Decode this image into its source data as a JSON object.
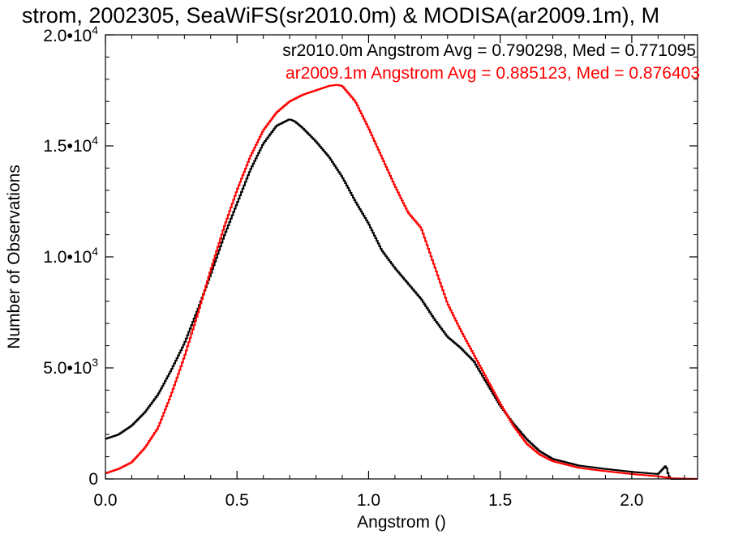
{
  "chart_data": {
    "type": "line",
    "step": true,
    "title": "strom, 2002305, SeaWiFS(sr2010.0m) & MODISA(ar2009.1m), M",
    "xlabel": "Angstrom ()",
    "ylabel": "Number of Observations",
    "xlim": [
      0,
      2.25
    ],
    "ylim": [
      0,
      20000
    ],
    "x_ticks": [
      {
        "value": 0.0,
        "label": "0.0"
      },
      {
        "value": 0.5,
        "label": "0.5"
      },
      {
        "value": 1.0,
        "label": "1.0"
      },
      {
        "value": 1.5,
        "label": "1.5"
      },
      {
        "value": 2.0,
        "label": "2.0"
      }
    ],
    "y_ticks": [
      {
        "value": 0,
        "label": "0"
      },
      {
        "value": 5000,
        "mantissa": "5.0•10",
        "exp": "3"
      },
      {
        "value": 10000,
        "mantissa": "1.0•10",
        "exp": "4"
      },
      {
        "value": 15000,
        "mantissa": "1.5•10",
        "exp": "4"
      },
      {
        "value": 20000,
        "mantissa": "2.0•10",
        "exp": "4"
      }
    ],
    "annotations": [
      {
        "text": "sr2010.0m Angstrom Avg = 0.790298, Med = 0.771095",
        "color": "#000000"
      },
      {
        "text": "ar2009.1m Angstrom Avg = 0.885123, Med = 0.876403",
        "color": "#ff0000"
      }
    ],
    "series": [
      {
        "color": "#000000",
        "x": [
          0.0,
          0.05,
          0.1,
          0.15,
          0.2,
          0.25,
          0.3,
          0.35,
          0.4,
          0.45,
          0.5,
          0.55,
          0.6,
          0.65,
          0.7,
          0.72,
          0.75,
          0.8,
          0.85,
          0.9,
          0.95,
          1.0,
          1.05,
          1.1,
          1.15,
          1.2,
          1.25,
          1.3,
          1.35,
          1.4,
          1.45,
          1.5,
          1.55,
          1.6,
          1.65,
          1.7,
          1.8,
          1.9,
          2.0,
          2.1,
          2.13,
          2.14,
          2.15,
          2.25
        ],
        "y": [
          1800,
          2000,
          2400,
          3000,
          3800,
          4900,
          6100,
          7600,
          9200,
          10900,
          12400,
          13900,
          15100,
          15900,
          16200,
          16100,
          15800,
          15200,
          14500,
          13600,
          12500,
          11500,
          10300,
          9500,
          8800,
          8100,
          7200,
          6400,
          5900,
          5300,
          4300,
          3300,
          2500,
          1800,
          1250,
          900,
          600,
          450,
          320,
          220,
          600,
          150,
          0,
          0
        ]
      },
      {
        "color": "#ff0000",
        "x": [
          0.0,
          0.05,
          0.1,
          0.15,
          0.2,
          0.25,
          0.3,
          0.35,
          0.4,
          0.45,
          0.5,
          0.55,
          0.6,
          0.65,
          0.7,
          0.75,
          0.8,
          0.85,
          0.88,
          0.9,
          0.95,
          1.0,
          1.05,
          1.1,
          1.15,
          1.2,
          1.25,
          1.3,
          1.35,
          1.4,
          1.45,
          1.5,
          1.55,
          1.6,
          1.65,
          1.7,
          1.8,
          1.9,
          2.0,
          2.1,
          2.15,
          2.25
        ],
        "y": [
          250,
          450,
          750,
          1400,
          2300,
          3800,
          5500,
          7400,
          9400,
          11300,
          13000,
          14500,
          15700,
          16500,
          17000,
          17300,
          17500,
          17700,
          17750,
          17700,
          17000,
          15800,
          14500,
          13200,
          12000,
          11300,
          9600,
          7900,
          6700,
          5600,
          4500,
          3400,
          2400,
          1600,
          1100,
          800,
          500,
          350,
          220,
          120,
          30,
          0
        ]
      }
    ]
  }
}
